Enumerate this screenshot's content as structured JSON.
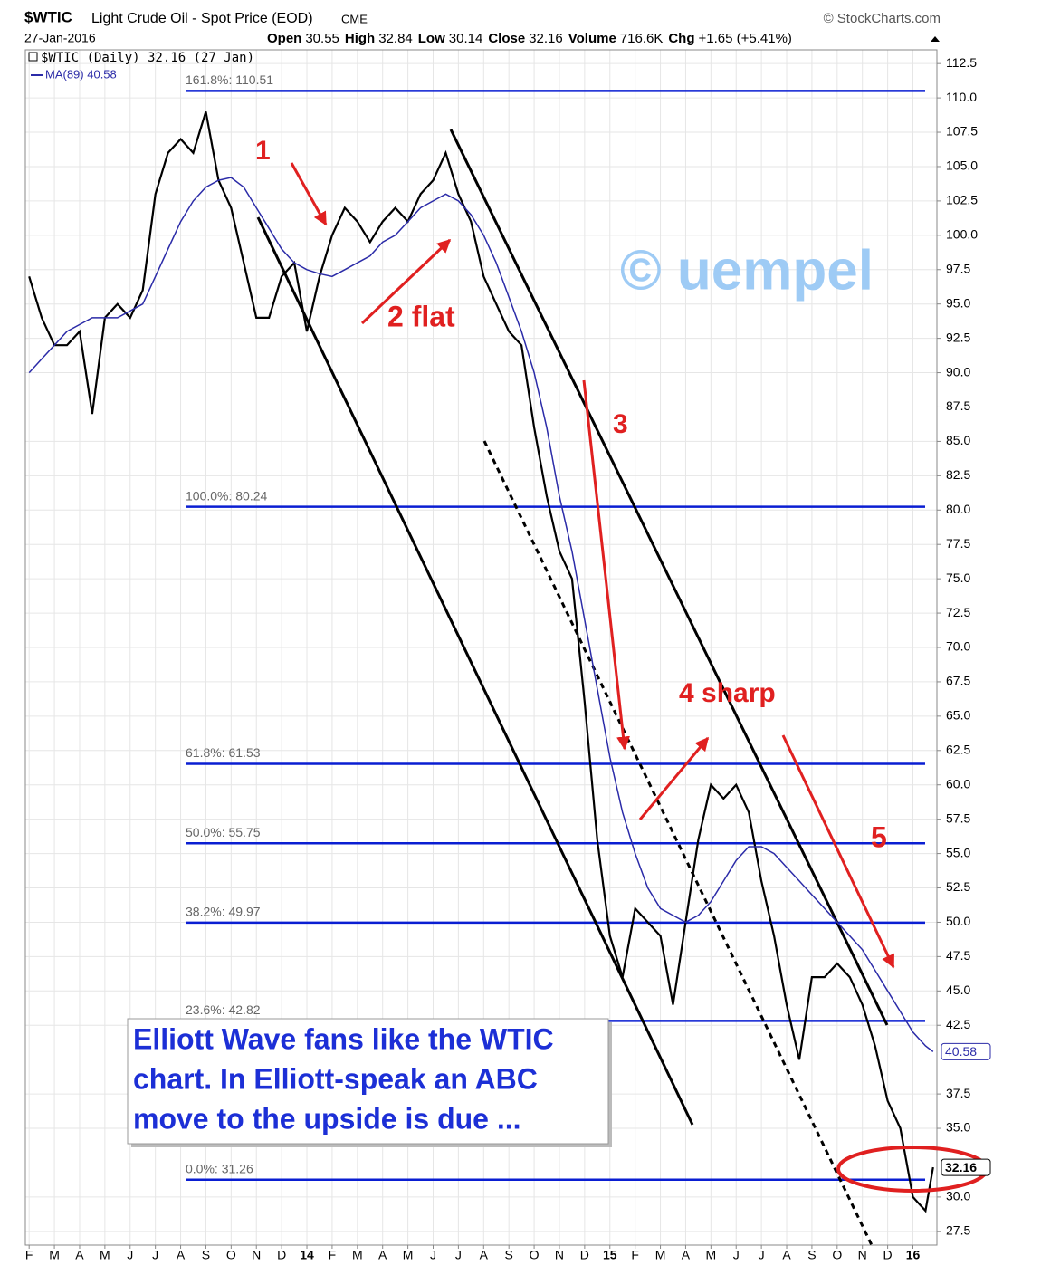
{
  "chart_data": {
    "type": "line",
    "symbol": "$WTIC",
    "title": "Light Crude Oil - Spot Price (EOD)",
    "exchange": "CME",
    "source": "© StockCharts.com",
    "date": "27-Jan-2016",
    "quote": [
      {
        "label": "Open",
        "value": "30.55"
      },
      {
        "label": "High",
        "value": "32.84"
      },
      {
        "label": "Low",
        "value": "30.14"
      },
      {
        "label": "Close",
        "value": "32.16"
      },
      {
        "label": "Volume",
        "value": "716.6K"
      },
      {
        "label": "Chg",
        "value": "+1.65 (+5.41%)"
      }
    ],
    "x": [
      0,
      0.5,
      1,
      1.5,
      2,
      2.5,
      3,
      3.5,
      4,
      4.5,
      5,
      5.5,
      6,
      6.5,
      7,
      7.5,
      8,
      8.5,
      9,
      9.5,
      10,
      10.5,
      11,
      11.5,
      12,
      12.5,
      13,
      13.5,
      14,
      14.5,
      15,
      15.5,
      16,
      16.5,
      17,
      17.5,
      18,
      18.5,
      19,
      19.5,
      20,
      20.5,
      21,
      21.5,
      22,
      22.5,
      23,
      23.5,
      24,
      24.5,
      25,
      25.5,
      26,
      26.5,
      27,
      27.5,
      28,
      28.5,
      29,
      29.5,
      30,
      30.5,
      31,
      31.5,
      32,
      32.5,
      33,
      33.5,
      34,
      34.5,
      35,
      35.5,
      35.8
    ],
    "series": [
      {
        "name": "$WTIC (Daily) 32.16 (27 Jan)",
        "color": "#000000",
        "values": [
          97,
          94,
          92,
          92,
          93,
          87,
          94,
          95,
          94,
          96,
          103,
          106,
          107,
          106,
          109,
          104,
          102,
          98,
          94,
          94,
          97,
          98,
          93,
          97,
          100,
          102,
          101,
          99.5,
          101,
          102,
          101,
          103,
          104,
          106,
          103,
          101,
          97,
          95,
          93,
          92,
          86,
          81,
          77,
          75,
          66,
          56,
          49,
          46,
          51,
          50,
          49,
          44,
          50,
          56,
          60,
          59,
          60,
          58,
          53,
          49,
          44,
          40,
          46,
          46,
          47,
          46,
          44,
          41,
          37,
          35,
          30,
          29,
          32.16
        ],
        "last_label": "32.16"
      },
      {
        "name": "MA(89) 40.58",
        "color": "#2b2ba8",
        "values": [
          90,
          91,
          92,
          93,
          93.5,
          94,
          94,
          94,
          94.5,
          95,
          97,
          99,
          101,
          102.5,
          103.5,
          104,
          104.2,
          103.5,
          102,
          100.5,
          99,
          98,
          97.5,
          97.2,
          97,
          97.5,
          98,
          98.5,
          99.5,
          100,
          101,
          102,
          102.5,
          103,
          102.5,
          101.5,
          100,
          98,
          95.5,
          93,
          90,
          86,
          81,
          77,
          72,
          67,
          62,
          58,
          55,
          52.5,
          51,
          50.5,
          50,
          50.5,
          51.5,
          53,
          54.5,
          55.5,
          55.5,
          55,
          54,
          53,
          52,
          51,
          50,
          49,
          48,
          46.5,
          45,
          43.5,
          42,
          41,
          40.58
        ],
        "last_label": "40.58"
      }
    ],
    "xlim": [
      -0.15,
      35.95
    ],
    "xticks": [
      {
        "value": 0,
        "label": "F"
      },
      {
        "value": 1,
        "label": "M"
      },
      {
        "value": 2,
        "label": "A"
      },
      {
        "value": 3,
        "label": "M"
      },
      {
        "value": 4,
        "label": "J"
      },
      {
        "value": 5,
        "label": "J"
      },
      {
        "value": 6,
        "label": "A"
      },
      {
        "value": 7,
        "label": "S"
      },
      {
        "value": 8,
        "label": "O"
      },
      {
        "value": 9,
        "label": "N"
      },
      {
        "value": 10,
        "label": "D"
      },
      {
        "value": 11,
        "label": "14"
      },
      {
        "value": 12,
        "label": "F"
      },
      {
        "value": 13,
        "label": "M"
      },
      {
        "value": 14,
        "label": "A"
      },
      {
        "value": 15,
        "label": "M"
      },
      {
        "value": 16,
        "label": "J"
      },
      {
        "value": 17,
        "label": "J"
      },
      {
        "value": 18,
        "label": "A"
      },
      {
        "value": 19,
        "label": "S"
      },
      {
        "value": 20,
        "label": "O"
      },
      {
        "value": 21,
        "label": "N"
      },
      {
        "value": 22,
        "label": "D"
      },
      {
        "value": 23,
        "label": "15"
      },
      {
        "value": 24,
        "label": "F"
      },
      {
        "value": 25,
        "label": "M"
      },
      {
        "value": 26,
        "label": "A"
      },
      {
        "value": 27,
        "label": "M"
      },
      {
        "value": 28,
        "label": "J"
      },
      {
        "value": 29,
        "label": "J"
      },
      {
        "value": 30,
        "label": "A"
      },
      {
        "value": 31,
        "label": "S"
      },
      {
        "value": 32,
        "label": "O"
      },
      {
        "value": 33,
        "label": "N"
      },
      {
        "value": 34,
        "label": "D"
      },
      {
        "value": 35,
        "label": "16"
      }
    ],
    "ylim": [
      26.5,
      113.5
    ],
    "yticks": [
      {
        "value": 112.5,
        "label": "112.5"
      },
      {
        "value": 110,
        "label": "110.0"
      },
      {
        "value": 107.5,
        "label": "107.5"
      },
      {
        "value": 105,
        "label": "105.0"
      },
      {
        "value": 102.5,
        "label": "102.5"
      },
      {
        "value": 100,
        "label": "100.0"
      },
      {
        "value": 97.5,
        "label": "97.5"
      },
      {
        "value": 95,
        "label": "95.0"
      },
      {
        "value": 92.5,
        "label": "92.5"
      },
      {
        "value": 90,
        "label": "90.0"
      },
      {
        "value": 87.5,
        "label": "87.5"
      },
      {
        "value": 85,
        "label": "85.0"
      },
      {
        "value": 82.5,
        "label": "82.5"
      },
      {
        "value": 80,
        "label": "80.0"
      },
      {
        "value": 77.5,
        "label": "77.5"
      },
      {
        "value": 75,
        "label": "75.0"
      },
      {
        "value": 72.5,
        "label": "72.5"
      },
      {
        "value": 70,
        "label": "70.0"
      },
      {
        "value": 67.5,
        "label": "67.5"
      },
      {
        "value": 65,
        "label": "65.0"
      },
      {
        "value": 62.5,
        "label": "62.5"
      },
      {
        "value": 60,
        "label": "60.0"
      },
      {
        "value": 57.5,
        "label": "57.5"
      },
      {
        "value": 55,
        "label": "55.0"
      },
      {
        "value": 52.5,
        "label": "52.5"
      },
      {
        "value": 50,
        "label": "50.0"
      },
      {
        "value": 47.5,
        "label": "47.5"
      },
      {
        "value": 45,
        "label": "45.0"
      },
      {
        "value": 42.5,
        "label": "42.5"
      },
      {
        "value": 37.5,
        "label": "37.5"
      },
      {
        "value": 35,
        "label": "35.0"
      },
      {
        "value": 30,
        "label": "30.0"
      },
      {
        "value": 27.5,
        "label": "27.5"
      }
    ],
    "grid": true,
    "fib_levels": [
      {
        "value": 110.51,
        "label": "161.8%: 110.51"
      },
      {
        "value": 80.24,
        "label": "100.0%: 80.24"
      },
      {
        "value": 61.53,
        "label": "61.8%: 61.53"
      },
      {
        "value": 55.75,
        "label": "50.0%: 55.75"
      },
      {
        "value": 49.97,
        "label": "38.2%: 49.97"
      },
      {
        "value": 42.82,
        "label": "23.6%: 42.82"
      },
      {
        "value": 31.26,
        "label": "0.0%: 31.26"
      }
    ],
    "fib_color": "#0a1ed2",
    "annotations": [
      "1",
      "2 flat",
      "3",
      "4 sharp",
      "5"
    ],
    "watermark": "© uempel",
    "note": [
      "Elliott Wave fans like the WTIC",
      "chart. In Elliott-speak an ABC",
      "move to the upside is due ..."
    ]
  }
}
